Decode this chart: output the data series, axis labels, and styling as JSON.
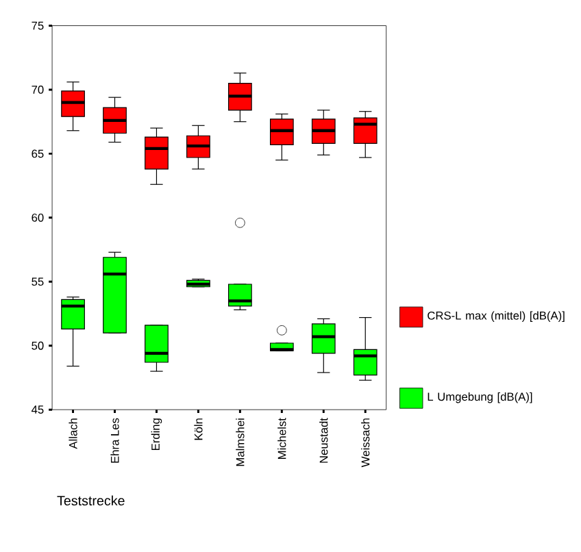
{
  "chart_data": {
    "type": "box",
    "xlabel": "Teststrecke",
    "categories": [
      "Allach",
      "Ehra Les",
      "Erding",
      "Köln",
      "Malmshei",
      "Michelst",
      "Neustadt",
      "Weissach"
    ],
    "ylim": [
      45,
      75
    ],
    "yticks": [
      45,
      50,
      55,
      60,
      65,
      70,
      75
    ],
    "grid": false,
    "legend": "right",
    "series": [
      {
        "name": "CRS-L max (mittel) [dB(A)]",
        "color": "#ff0000",
        "boxes": [
          {
            "low": 66.8,
            "q1": 67.9,
            "median": 69.0,
            "q3": 69.9,
            "high": 70.6
          },
          {
            "low": 65.9,
            "q1": 66.6,
            "median": 67.6,
            "q3": 68.6,
            "high": 69.4
          },
          {
            "low": 62.6,
            "q1": 63.8,
            "median": 65.4,
            "q3": 66.3,
            "high": 67.0
          },
          {
            "low": 63.8,
            "q1": 64.7,
            "median": 65.6,
            "q3": 66.4,
            "high": 67.2
          },
          {
            "low": 67.5,
            "q1": 68.4,
            "median": 69.5,
            "q3": 70.5,
            "high": 71.3
          },
          {
            "low": 64.5,
            "q1": 65.7,
            "median": 66.8,
            "q3": 67.7,
            "high": 68.1
          },
          {
            "low": 64.9,
            "q1": 65.8,
            "median": 66.8,
            "q3": 67.7,
            "high": 68.4
          },
          {
            "low": 64.7,
            "q1": 65.8,
            "median": 67.3,
            "q3": 67.8,
            "high": 68.3
          }
        ]
      },
      {
        "name": "L Umgebung [dB(A)]",
        "color": "#00ff00",
        "boxes": [
          {
            "low": 48.4,
            "q1": 51.3,
            "median": 53.1,
            "q3": 53.6,
            "high": 53.8
          },
          {
            "low": 51.0,
            "q1": 51.0,
            "median": 55.6,
            "q3": 56.9,
            "high": 57.3
          },
          {
            "low": 48.0,
            "q1": 48.7,
            "median": 49.4,
            "q3": 51.6,
            "high": 51.6
          },
          {
            "low": 54.6,
            "q1": 54.6,
            "median": 54.8,
            "q3": 55.1,
            "high": 55.2
          },
          {
            "low": 52.8,
            "q1": 53.1,
            "median": 53.5,
            "q3": 54.8,
            "high": 54.8,
            "outliers": [
              59.6
            ]
          },
          {
            "low": 49.6,
            "q1": 49.6,
            "median": 49.7,
            "q3": 50.2,
            "high": 50.2,
            "outliers": [
              51.2
            ]
          },
          {
            "low": 47.9,
            "q1": 49.4,
            "median": 50.7,
            "q3": 51.7,
            "high": 52.1
          },
          {
            "low": 47.3,
            "q1": 47.7,
            "median": 49.2,
            "q3": 49.7,
            "high": 52.2
          }
        ]
      }
    ]
  }
}
